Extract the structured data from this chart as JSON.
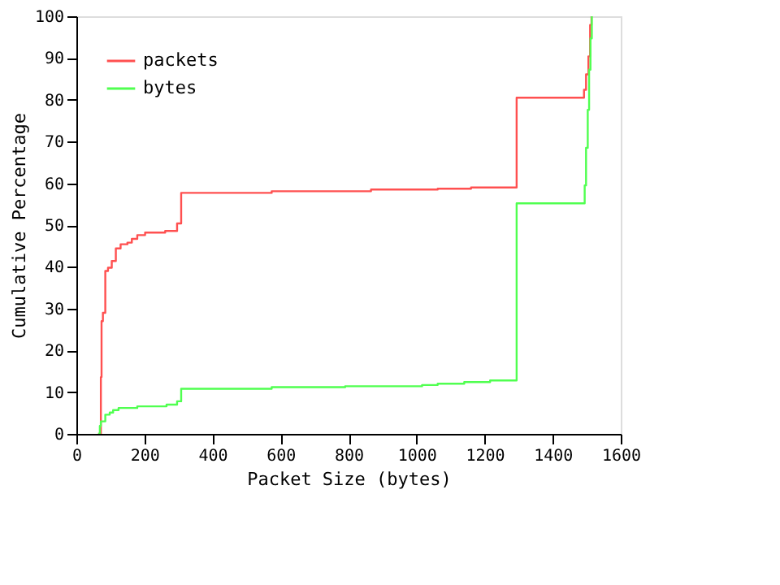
{
  "chart_data": {
    "type": "step",
    "xlabel": "Packet Size (bytes)",
    "ylabel": "Cumulative Percentage",
    "xlim": [
      0,
      1600
    ],
    "xticks": [
      0,
      200,
      400,
      600,
      800,
      1000,
      1200,
      1400,
      1600
    ],
    "ylim": [
      0,
      100
    ],
    "yticks": [
      0,
      10,
      20,
      30,
      40,
      50,
      60,
      70,
      80,
      90,
      100
    ],
    "grid": false,
    "legend": "top left",
    "marker": "none",
    "line_style": "solid",
    "series": [
      {
        "name": "packets",
        "color": "#ff5050",
        "x": [
          64,
          72,
          74,
          78,
          85,
          93,
          104,
          116,
          130,
          150,
          163,
          179,
          202,
          261,
          296,
          308,
          574,
          866,
          1062,
          1160,
          1294,
          1492,
          1498,
          1505,
          1510,
          1514
        ],
        "values": [
          0,
          13.6,
          27,
          29,
          39,
          39.8,
          41.4,
          44.4,
          45.4,
          45.8,
          46.7,
          47.6,
          48.2,
          48.6,
          50.4,
          57.7,
          58.1,
          58.5,
          58.7,
          59.0,
          80.5,
          82.4,
          86.1,
          90.4,
          97.9,
          100
        ]
      },
      {
        "name": "bytes",
        "color": "#50ff50",
        "x": [
          64,
          69,
          72,
          85,
          98,
          108,
          124,
          179,
          265,
          296,
          308,
          574,
          790,
          1016,
          1062,
          1140,
          1216,
          1294,
          1494,
          1498,
          1503,
          1507,
          1511,
          1515
        ],
        "values": [
          0,
          1.9,
          3.0,
          4.6,
          5.1,
          5.7,
          6.2,
          6.6,
          7.0,
          7.8,
          10.8,
          11.2,
          11.4,
          11.7,
          12.0,
          12.4,
          12.8,
          55.2,
          59.5,
          68.5,
          77.6,
          87.2,
          94.7,
          100
        ]
      }
    ]
  }
}
